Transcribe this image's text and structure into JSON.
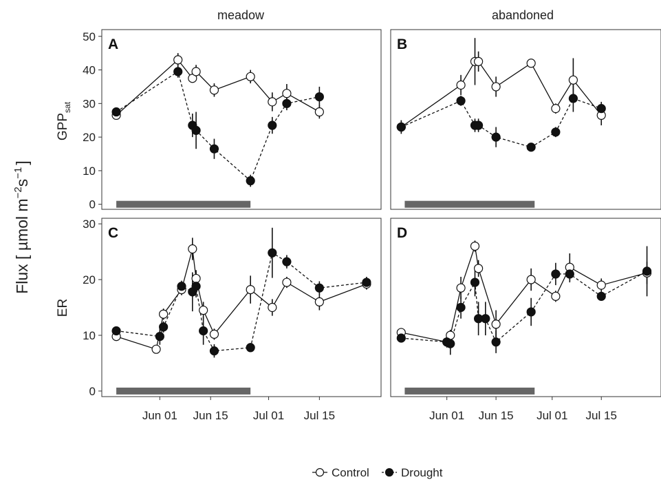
{
  "figure": {
    "y_title": "Flux [ µmol m",
    "y_title_sup1": "−2",
    "y_title_mid": "s",
    "y_title_sup2": "−1",
    "y_title_end": "]",
    "facets": [
      "meadow",
      "abandoned"
    ],
    "rows": [
      {
        "label": "GPP",
        "label_sub": "sat"
      },
      {
        "label": "ER",
        "label_sub": ""
      }
    ],
    "legend": {
      "control": "Control",
      "drought": "Drought"
    },
    "colors": {
      "control_fill": "#ffffff",
      "drought_fill": "#111111",
      "line": "#111111",
      "drought_bar": "#666666"
    }
  },
  "chart_data": [
    {
      "type": "line",
      "panel": "A",
      "facet": "meadow",
      "ylabel": "GPPsat",
      "x_ticks": [
        "Jun 01",
        "Jun 15",
        "Jul 01",
        "Jul 15"
      ],
      "y_ticks": [
        0,
        10,
        20,
        30,
        40,
        50
      ],
      "ylim": [
        -1.5,
        52
      ],
      "xlim": [
        "2014-05-16",
        "2014-08-01"
      ],
      "drought_period": [
        "2014-05-20",
        "2014-06-26"
      ],
      "series": [
        {
          "name": "Control",
          "x": [
            "2014-05-20",
            "2014-06-06",
            "2014-06-10",
            "2014-06-11",
            "2014-06-16",
            "2014-06-26",
            "2014-07-02",
            "2014-07-06",
            "2014-07-15"
          ],
          "values": [
            26.5,
            43.0,
            37.5,
            39.5,
            34.0,
            38.0,
            30.5,
            33.0,
            27.5
          ],
          "err": [
            1.0,
            2.0,
            1.2,
            2.0,
            2.0,
            2.0,
            2.8,
            2.8,
            2.0
          ]
        },
        {
          "name": "Drought",
          "x": [
            "2014-05-20",
            "2014-06-06",
            "2014-06-10",
            "2014-06-11",
            "2014-06-16",
            "2014-06-26",
            "2014-07-02",
            "2014-07-06",
            "2014-07-15"
          ],
          "values": [
            27.5,
            39.5,
            23.5,
            22.0,
            16.5,
            7.0,
            23.5,
            30.0,
            32.0
          ],
          "err": [
            1.0,
            1.8,
            3.5,
            5.5,
            3.0,
            1.8,
            2.5,
            2.0,
            3.0
          ]
        }
      ]
    },
    {
      "type": "line",
      "panel": "B",
      "facet": "abandoned",
      "ylabel": "GPPsat",
      "x_ticks": [
        "Jun 01",
        "Jun 15",
        "Jul 01",
        "Jul 15"
      ],
      "y_ticks": [
        0,
        10,
        20,
        30,
        40,
        50
      ],
      "ylim": [
        -1.5,
        52
      ],
      "xlim": [
        "2014-05-16",
        "2014-08-01"
      ],
      "drought_period": [
        "2014-05-20",
        "2014-06-26"
      ],
      "series": [
        {
          "name": "Control",
          "x": [
            "2014-05-19",
            "2014-06-05",
            "2014-06-09",
            "2014-06-10",
            "2014-06-15",
            "2014-06-25",
            "2014-07-02",
            "2014-07-07",
            "2014-07-15"
          ],
          "values": [
            23.0,
            35.5,
            42.5,
            42.5,
            35.0,
            42.0,
            28.5,
            37.0,
            26.5
          ],
          "err": [
            2.0,
            3.0,
            7.0,
            3.0,
            3.0,
            1.0,
            1.5,
            6.5,
            3.0
          ]
        },
        {
          "name": "Drought",
          "x": [
            "2014-05-19",
            "2014-06-05",
            "2014-06-09",
            "2014-06-10",
            "2014-06-15",
            "2014-06-25",
            "2014-07-02",
            "2014-07-07",
            "2014-07-15"
          ],
          "values": [
            23.0,
            30.8,
            23.5,
            23.5,
            20.0,
            17.0,
            21.5,
            31.5,
            28.5
          ],
          "err": [
            2.0,
            1.5,
            2.0,
            2.0,
            3.0,
            1.0,
            1.5,
            4.0,
            2.0
          ]
        }
      ]
    },
    {
      "type": "line",
      "panel": "C",
      "facet": "meadow",
      "ylabel": "ER",
      "x_ticks": [
        "Jun 01",
        "Jun 15",
        "Jul 01",
        "Jul 15"
      ],
      "y_ticks": [
        0,
        10,
        20,
        30
      ],
      "ylim": [
        -1,
        31
      ],
      "xlim": [
        "2014-05-16",
        "2014-08-01"
      ],
      "drought_period": [
        "2014-05-20",
        "2014-06-26"
      ],
      "series": [
        {
          "name": "Control",
          "x": [
            "2014-05-20",
            "2014-05-31",
            "2014-06-02",
            "2014-06-07",
            "2014-06-10",
            "2014-06-11",
            "2014-06-13",
            "2014-06-16",
            "2014-06-26",
            "2014-07-02",
            "2014-07-06",
            "2014-07-15",
            "2014-07-28"
          ],
          "values": [
            9.8,
            7.5,
            13.8,
            18.2,
            25.5,
            20.2,
            14.5,
            10.2,
            18.2,
            15.0,
            19.5,
            16.0,
            19.2
          ],
          "err": [
            0.8,
            0.5,
            1.0,
            1.0,
            2.0,
            1.5,
            1.5,
            1.0,
            2.5,
            1.5,
            1.0,
            1.5,
            1.0
          ]
        },
        {
          "name": "Drought",
          "x": [
            "2014-05-20",
            "2014-06-01",
            "2014-06-02",
            "2014-06-07",
            "2014-06-10",
            "2014-06-11",
            "2014-06-13",
            "2014-06-16",
            "2014-06-26",
            "2014-07-02",
            "2014-07-06",
            "2014-07-15",
            "2014-07-28"
          ],
          "values": [
            10.8,
            9.8,
            11.5,
            18.8,
            17.8,
            18.8,
            10.8,
            7.2,
            7.8,
            24.8,
            23.2,
            18.5,
            19.5
          ],
          "err": [
            0.8,
            1.5,
            1.0,
            1.0,
            3.5,
            2.0,
            2.5,
            1.2,
            0.8,
            4.5,
            1.2,
            1.2,
            1.0
          ]
        }
      ]
    },
    {
      "type": "line",
      "panel": "D",
      "facet": "abandoned",
      "ylabel": "ER",
      "x_ticks": [
        "Jun 01",
        "Jun 15",
        "Jul 01",
        "Jul 15"
      ],
      "y_ticks": [
        0,
        10,
        20,
        30
      ],
      "ylim": [
        -1,
        31
      ],
      "xlim": [
        "2014-05-16",
        "2014-08-01"
      ],
      "drought_period": [
        "2014-05-20",
        "2014-06-26"
      ],
      "series": [
        {
          "name": "Control",
          "x": [
            "2014-05-19",
            "2014-06-01",
            "2014-06-02",
            "2014-06-05",
            "2014-06-09",
            "2014-06-10",
            "2014-06-15",
            "2014-06-25",
            "2014-07-02",
            "2014-07-06",
            "2014-07-15",
            "2014-07-28"
          ],
          "values": [
            10.5,
            8.8,
            10.0,
            18.5,
            26.0,
            22.0,
            12.0,
            20.0,
            17.0,
            22.2,
            19.0,
            21.2
          ],
          "err": [
            0.8,
            0.8,
            1.0,
            2.0,
            1.0,
            1.5,
            2.5,
            2.0,
            1.0,
            2.5,
            1.2,
            2.0
          ]
        },
        {
          "name": "Drought",
          "x": [
            "2014-05-19",
            "2014-06-01",
            "2014-06-02",
            "2014-06-05",
            "2014-06-09",
            "2014-06-10",
            "2014-06-12",
            "2014-06-15",
            "2014-06-25",
            "2014-07-02",
            "2014-07-06",
            "2014-07-15",
            "2014-07-28"
          ],
          "values": [
            9.5,
            8.8,
            8.5,
            15.0,
            19.5,
            13.0,
            13.0,
            8.8,
            14.2,
            21.0,
            21.0,
            17.0,
            21.5
          ],
          "err": [
            0.5,
            1.0,
            2.0,
            2.0,
            2.5,
            3.0,
            3.0,
            2.0,
            2.5,
            2.0,
            1.5,
            0.8,
            4.5
          ]
        }
      ]
    }
  ]
}
